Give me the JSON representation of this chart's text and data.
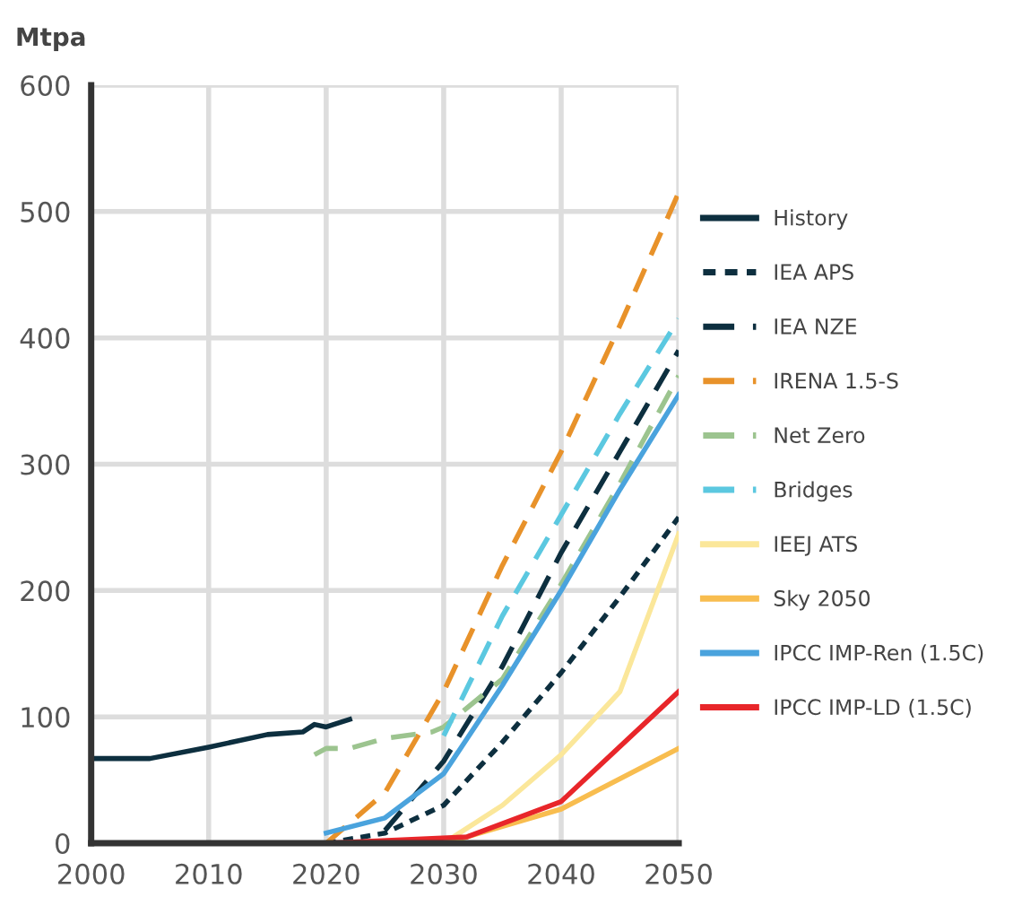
{
  "chart_data": {
    "type": "line",
    "ylabel": "Mtpa",
    "xlim": [
      2000,
      2050
    ],
    "ylim": [
      0,
      600
    ],
    "xticks": [
      2000,
      2010,
      2020,
      2030,
      2040,
      2050
    ],
    "yticks": [
      0,
      100,
      200,
      300,
      400,
      500,
      600
    ],
    "grid": true,
    "legend": "right",
    "marker": "none",
    "series": [
      {
        "name": "History",
        "color": "#0d2f3f",
        "line_style": "solid",
        "x": [
          2000,
          2005,
          2010,
          2015,
          2018,
          2019,
          2020,
          2021,
          2022
        ],
        "values": [
          67,
          67,
          76,
          86,
          88,
          94,
          92,
          95,
          98
        ]
      },
      {
        "name": "IEA APS",
        "color": "#0d2f3f",
        "line_style": "dotted",
        "x": [
          2020,
          2025,
          2030,
          2035,
          2040,
          2045,
          2050
        ],
        "values": [
          0,
          8,
          30,
          80,
          135,
          195,
          258
        ]
      },
      {
        "name": "IEA NZE",
        "color": "#0d2f3f",
        "line_style": "dashed",
        "x": [
          2025,
          2030,
          2035,
          2040,
          2045,
          2050
        ],
        "values": [
          10,
          65,
          140,
          230,
          310,
          390
        ]
      },
      {
        "name": "IRENA 1.5-S",
        "color": "#e8922a",
        "line_style": "dashed",
        "x": [
          2020,
          2025,
          2030,
          2035,
          2040,
          2045,
          2050
        ],
        "values": [
          0,
          40,
          120,
          220,
          310,
          410,
          515
        ]
      },
      {
        "name": "Net Zero",
        "color": "#9cc48f",
        "line_style": "dashed",
        "x": [
          2019,
          2020,
          2022,
          2025,
          2029,
          2030,
          2035,
          2040,
          2045,
          2050
        ],
        "values": [
          70,
          75,
          75,
          83,
          88,
          92,
          130,
          205,
          285,
          370
        ]
      },
      {
        "name": "Bridges",
        "color": "#5bc8e0",
        "line_style": "dashed",
        "x": [
          2030,
          2035,
          2040,
          2045,
          2050
        ],
        "values": [
          85,
          180,
          260,
          340,
          415
        ]
      },
      {
        "name": "IEEJ ATS",
        "color": "#fbe79a",
        "line_style": "solid",
        "x": [
          2030,
          2035,
          2040,
          2045,
          2050
        ],
        "values": [
          0,
          30,
          70,
          120,
          245
        ]
      },
      {
        "name": "Sky 2050",
        "color": "#f8bd4f",
        "line_style": "solid",
        "x": [
          2030,
          2032,
          2040,
          2050
        ],
        "values": [
          0,
          5,
          27,
          75
        ]
      },
      {
        "name": "IPCC IMP-Ren (1.5C)",
        "color": "#4aa3dd",
        "line_style": "solid",
        "x": [
          2020,
          2025,
          2030,
          2035,
          2040,
          2045,
          2050
        ],
        "values": [
          8,
          20,
          55,
          125,
          200,
          280,
          355
        ]
      },
      {
        "name": "IPCC IMP-LD (1.5C)",
        "color": "#e8262a",
        "line_style": "solid",
        "x": [
          2020,
          2032,
          2040,
          2050
        ],
        "values": [
          0,
          5,
          33,
          120
        ]
      }
    ]
  }
}
